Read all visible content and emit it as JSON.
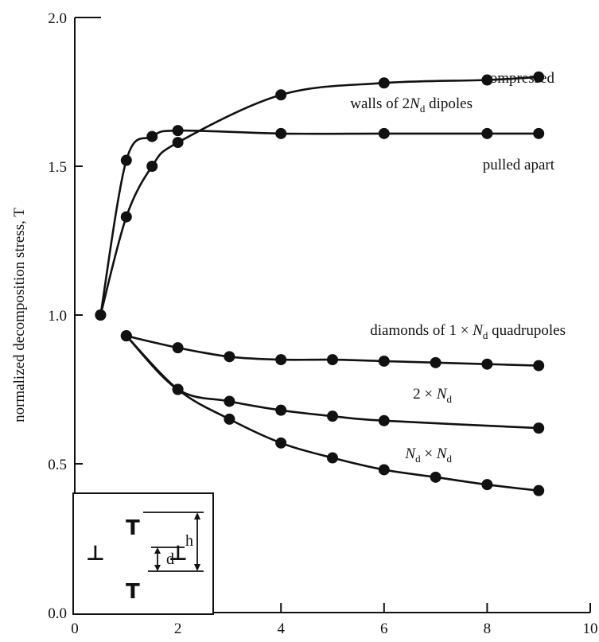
{
  "chart_data": {
    "type": "line",
    "title": "",
    "xlabel": "",
    "ylabel": "normalized decomposition stress, T",
    "xlim": [
      0,
      10
    ],
    "ylim": [
      0,
      2.0
    ],
    "x_ticks": [
      0,
      2,
      4,
      6,
      8,
      10
    ],
    "x_tick_labels": [
      "0",
      "2",
      "4",
      "6",
      "8",
      "10"
    ],
    "y_ticks": [
      0,
      0.5,
      1.0,
      1.5,
      2.0
    ],
    "y_tick_labels": [
      "0.0",
      "0.5",
      "1.0",
      "1.5",
      "2.0"
    ],
    "grid": false,
    "series": [
      {
        "name": "compressed",
        "x": [
          0.5,
          1,
          1.5,
          2,
          4,
          6,
          8,
          9
        ],
        "y": [
          1.0,
          1.33,
          1.5,
          1.58,
          1.74,
          1.78,
          1.79,
          1.8
        ]
      },
      {
        "name": "pulled apart",
        "x": [
          0.5,
          1,
          1.5,
          2,
          4,
          6,
          8,
          9
        ],
        "y": [
          1.0,
          1.52,
          1.6,
          1.62,
          1.61,
          1.61,
          1.61,
          1.61
        ]
      },
      {
        "name": "diamonds of 1 × Nd quadrupoles",
        "x": [
          1,
          2,
          3,
          4,
          5,
          6,
          7,
          8,
          9
        ],
        "y": [
          0.93,
          0.89,
          0.86,
          0.85,
          0.85,
          0.845,
          0.84,
          0.835,
          0.83
        ]
      },
      {
        "name": "2 × Nd",
        "x": [
          1,
          2,
          3,
          4,
          5,
          6,
          9
        ],
        "y": [
          0.93,
          0.75,
          0.71,
          0.68,
          0.66,
          0.645,
          0.62
        ]
      },
      {
        "name": "Nd × Nd",
        "x": [
          1,
          2,
          3,
          4,
          5,
          6,
          7,
          8,
          9
        ],
        "y": [
          0.93,
          0.75,
          0.65,
          0.57,
          0.52,
          0.48,
          0.455,
          0.43,
          0.41
        ]
      }
    ],
    "annotations": [
      {
        "text": "compressed",
        "x": 9.0,
        "y": 1.81
      },
      {
        "text": "walls of 2",
        "sub_text": "dipoles",
        "x": 6.35,
        "y": 1.73
      },
      {
        "text": "pulled apart",
        "x": 9.0,
        "y": 1.51
      },
      {
        "text": "diamonds of 1 × ",
        "sub_text": "quadrupoles",
        "x": 9.2,
        "y": 0.94
      },
      {
        "text": "2 × ",
        "x": 7.6,
        "y": 0.73
      },
      {
        "text": "Nd × Nd",
        "x": 7.6,
        "y": 0.53
      }
    ],
    "inset": {
      "labels": [
        "d",
        "h"
      ]
    }
  }
}
